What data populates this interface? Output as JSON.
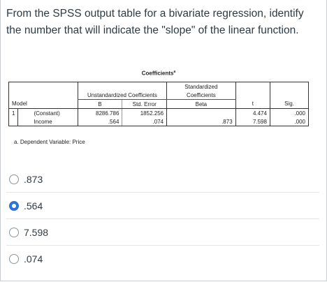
{
  "question": {
    "text": "From the SPSS output table for a bivariate regression, identify the number that will indicate the \"slope\" of the linear function."
  },
  "table": {
    "caption": "Coefficients",
    "caption_marker": "a",
    "header": {
      "unstandardized": "Unstandardized Coefficients",
      "standardized_line1": "Standardized",
      "standardized_line2": "Coefficients",
      "model": "Model",
      "b": "B",
      "std_error": "Std. Error",
      "beta": "Beta",
      "t": "t",
      "sig": "Sig."
    },
    "rows": [
      {
        "model_no": "1",
        "name": "(Constant)",
        "b": "8286.786",
        "std_error": "1852.256",
        "beta": "",
        "t": "4.474",
        "sig": ".000"
      },
      {
        "model_no": "",
        "name": "Income",
        "b": ".564",
        "std_error": ".074",
        "beta": ".873",
        "t": "7.598",
        "sig": ".000"
      }
    ],
    "footnote": "a. Dependent Variable: Price"
  },
  "options": [
    {
      "label": ".873",
      "selected": false
    },
    {
      "label": ".564",
      "selected": true
    },
    {
      "label": "7.598",
      "selected": false
    },
    {
      "label": ".074",
      "selected": false
    }
  ],
  "colors": {
    "radio_selected": "#2d73d5",
    "text": "#2d3b45"
  }
}
